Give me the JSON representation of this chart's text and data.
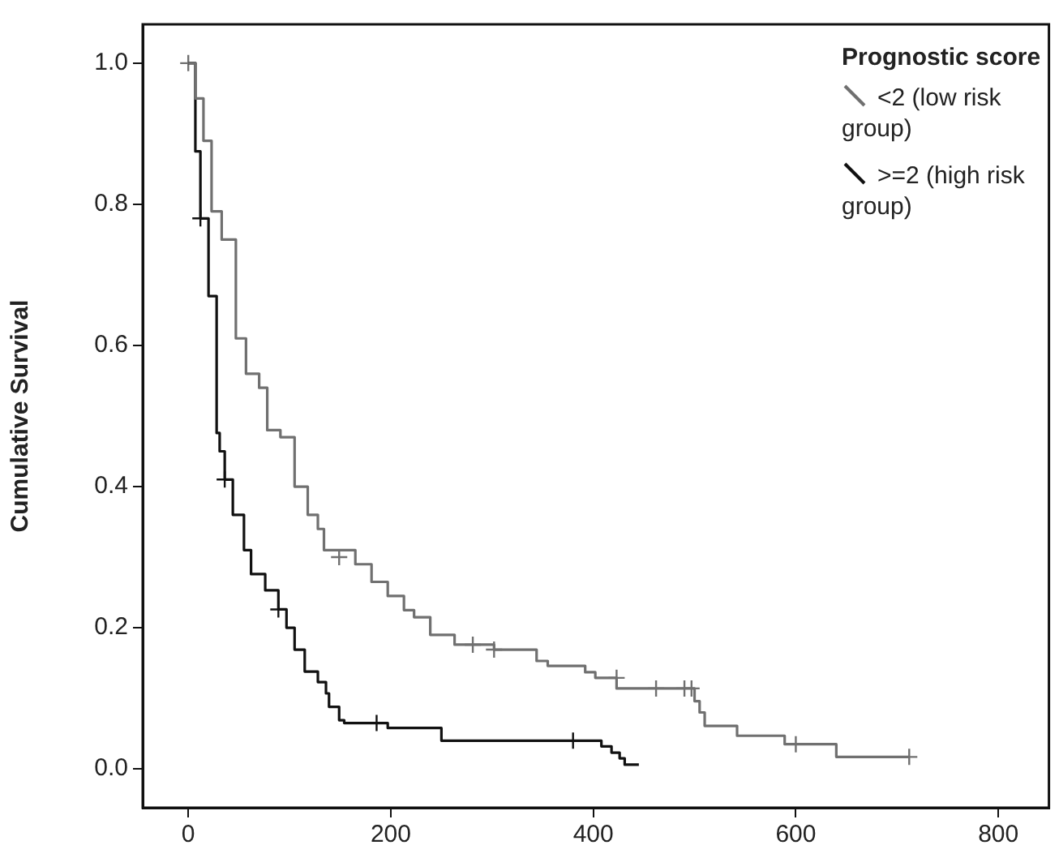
{
  "chart_data": {
    "type": "step",
    "ylabel": "Cumulative Survival",
    "legend_title": "Prognostic score",
    "legend": "top right",
    "grid": false,
    "xlim": [
      -45,
      850
    ],
    "xticks": [
      0,
      200,
      400,
      600,
      800
    ],
    "ylim": [
      -0.055,
      1.055
    ],
    "yticks": [
      {
        "value": 0,
        "label": "0.0"
      },
      0.2,
      0.4,
      0.6,
      0.8,
      {
        "value": 1,
        "label": "1.0"
      }
    ],
    "series": [
      {
        "name": "<2 (low risk group)",
        "color": "#707070",
        "x": [
          0,
          7,
          15,
          23,
          33,
          47,
          57,
          70,
          78,
          91,
          105,
          118,
          128,
          134,
          165,
          181,
          197,
          213,
          223,
          239,
          263,
          302,
          344,
          355,
          392,
          402,
          423,
          500,
          505,
          510,
          542,
          589,
          640,
          712
        ],
        "values": [
          1,
          0.95,
          0.89,
          0.79,
          0.75,
          0.61,
          0.56,
          0.54,
          0.48,
          0.47,
          0.4,
          0.36,
          0.34,
          0.31,
          0.29,
          0.265,
          0.245,
          0.225,
          0.215,
          0.19,
          0.176,
          0.169,
          0.153,
          0.146,
          0.137,
          0.129,
          0.114,
          0.096,
          0.08,
          0.061,
          0.047,
          0.035,
          0.017,
          0.017
        ]
      },
      {
        "name": ">=2 (high risk group)",
        "color": "#111111",
        "x": [
          0,
          7,
          12,
          20,
          28,
          31,
          36,
          44,
          55,
          62,
          76,
          89,
          97,
          105,
          115,
          128,
          136,
          139,
          149,
          154,
          197,
          250,
          408,
          418,
          426,
          431,
          445
        ],
        "values": [
          1,
          0.875,
          0.78,
          0.67,
          0.476,
          0.45,
          0.41,
          0.36,
          0.31,
          0.276,
          0.253,
          0.226,
          0.2,
          0.169,
          0.138,
          0.123,
          0.107,
          0.088,
          0.069,
          0.065,
          0.058,
          0.04,
          0.032,
          0.023,
          0.015,
          0.006,
          0.006
        ]
      },
      {
        "type": "scatter",
        "marker": "cross",
        "color": "#707070",
        "x": [
          0,
          149,
          281,
          302,
          423,
          462,
          490,
          497,
          600,
          712
        ],
        "values": [
          1,
          0.3,
          0.176,
          0.169,
          0.129,
          0.114,
          0.114,
          0.114,
          0.035,
          0.017
        ]
      },
      {
        "type": "scatter",
        "marker": "cross",
        "color": "#111111",
        "x": [
          12,
          36,
          89,
          186,
          380
        ],
        "values": [
          0.78,
          0.41,
          0.226,
          0.065,
          0.04
        ]
      }
    ]
  }
}
